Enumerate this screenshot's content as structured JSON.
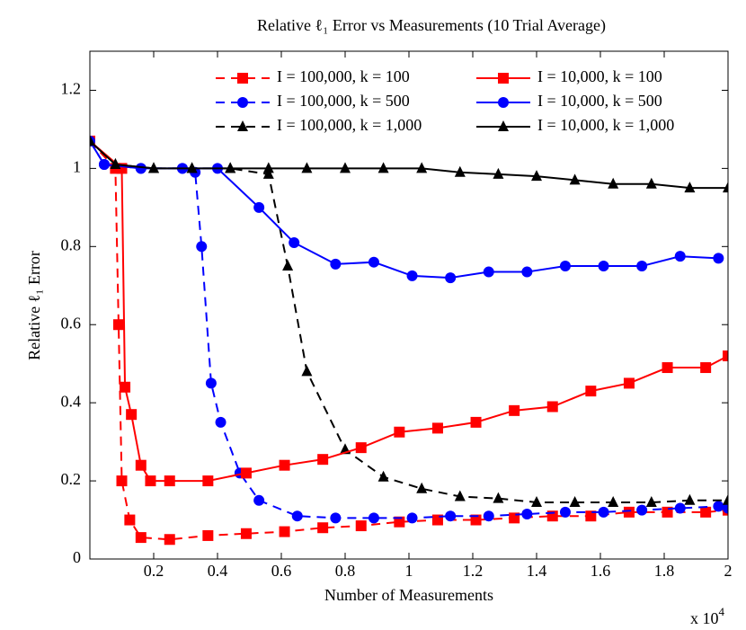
{
  "chart_data": {
    "type": "line",
    "title": "Relative ℓ₁ Error vs Measurements (10 Trial Average)",
    "x_label": "Number of Measurements",
    "y_label": "Relative ℓ₁ Error",
    "x_scale_base": "x 10",
    "x_scale_exponent": "4",
    "xlim": [
      0,
      2
    ],
    "ylim": [
      0,
      1.3
    ],
    "xticks": [
      0.2,
      0.4,
      0.6,
      0.8,
      1,
      1.2,
      1.4,
      1.6,
      1.8,
      2
    ],
    "yticks": [
      0,
      0.2,
      0.4,
      0.6,
      0.8,
      1,
      1.2
    ],
    "legend": "upper right",
    "legend_columns": 2,
    "series": [
      {
        "name": "I = 100,000, k = 100",
        "color": "#ff0000",
        "dashed": true,
        "marker": "square",
        "x": [
          0,
          0.08,
          0.09,
          0.1,
          0.125,
          0.16,
          0.25,
          0.37,
          0.49,
          0.61,
          0.73,
          0.85,
          0.97,
          1.09,
          1.21,
          1.33,
          1.45,
          1.57,
          1.69,
          1.81,
          1.93,
          2.0
        ],
        "values": [
          1.07,
          1.0,
          0.6,
          0.2,
          0.1,
          0.055,
          0.05,
          0.06,
          0.065,
          0.07,
          0.08,
          0.085,
          0.095,
          0.1,
          0.1,
          0.105,
          0.11,
          0.11,
          0.12,
          0.12,
          0.12,
          0.125
        ]
      },
      {
        "name": "I = 100,000, k = 500",
        "color": "#0000ff",
        "dashed": true,
        "marker": "circle",
        "x": [
          0,
          0.045,
          0.16,
          0.29,
          0.33,
          0.35,
          0.38,
          0.41,
          0.47,
          0.53,
          0.65,
          0.77,
          0.89,
          1.01,
          1.13,
          1.25,
          1.37,
          1.49,
          1.61,
          1.73,
          1.85,
          1.97,
          2.0
        ],
        "values": [
          1.07,
          1.01,
          1.0,
          1.0,
          0.99,
          0.8,
          0.45,
          0.35,
          0.22,
          0.15,
          0.11,
          0.105,
          0.105,
          0.105,
          0.11,
          0.11,
          0.115,
          0.12,
          0.12,
          0.125,
          0.13,
          0.135,
          0.13
        ]
      },
      {
        "name": "I = 100,000, k = 1,000",
        "color": "#000000",
        "dashed": true,
        "marker": "triangle",
        "x": [
          0,
          0.08,
          0.2,
          0.32,
          0.44,
          0.56,
          0.62,
          0.68,
          0.8,
          0.92,
          1.04,
          1.16,
          1.28,
          1.4,
          1.52,
          1.64,
          1.76,
          1.88,
          2.0
        ],
        "values": [
          1.07,
          1.01,
          1.0,
          1.0,
          1.0,
          0.985,
          0.75,
          0.48,
          0.28,
          0.21,
          0.18,
          0.16,
          0.155,
          0.145,
          0.145,
          0.145,
          0.145,
          0.15,
          0.15
        ]
      },
      {
        "name": "I = 10,000, k = 100",
        "color": "#ff0000",
        "dashed": false,
        "marker": "square",
        "x": [
          0,
          0.1,
          0.11,
          0.13,
          0.16,
          0.19,
          0.25,
          0.37,
          0.49,
          0.61,
          0.73,
          0.85,
          0.97,
          1.09,
          1.21,
          1.33,
          1.45,
          1.57,
          1.69,
          1.81,
          1.93,
          2.0
        ],
        "values": [
          1.07,
          1.0,
          0.44,
          0.37,
          0.24,
          0.2,
          0.2,
          0.2,
          0.22,
          0.24,
          0.255,
          0.285,
          0.325,
          0.335,
          0.35,
          0.38,
          0.39,
          0.43,
          0.45,
          0.49,
          0.49,
          0.52
        ]
      },
      {
        "name": "I = 10,000, k = 500",
        "color": "#0000ff",
        "dashed": false,
        "marker": "circle",
        "x": [
          0,
          0.045,
          0.16,
          0.29,
          0.4,
          0.53,
          0.64,
          0.77,
          0.89,
          1.01,
          1.13,
          1.25,
          1.37,
          1.49,
          1.61,
          1.73,
          1.85,
          1.97
        ],
        "values": [
          1.07,
          1.01,
          1.0,
          1.0,
          1.0,
          0.9,
          0.81,
          0.755,
          0.76,
          0.725,
          0.72,
          0.735,
          0.735,
          0.75,
          0.75,
          0.75,
          0.775,
          0.77
        ]
      },
      {
        "name": "I = 10,000, k = 1,000",
        "color": "#000000",
        "dashed": false,
        "marker": "triangle",
        "x": [
          0,
          0.08,
          0.2,
          0.32,
          0.44,
          0.56,
          0.68,
          0.8,
          0.92,
          1.04,
          1.16,
          1.28,
          1.4,
          1.52,
          1.64,
          1.76,
          1.88,
          2.0
        ],
        "values": [
          1.07,
          1.01,
          1.0,
          1.0,
          1.0,
          1.0,
          1.0,
          1.0,
          1.0,
          1.0,
          0.99,
          0.985,
          0.98,
          0.97,
          0.96,
          0.96,
          0.95,
          0.95
        ]
      }
    ]
  }
}
